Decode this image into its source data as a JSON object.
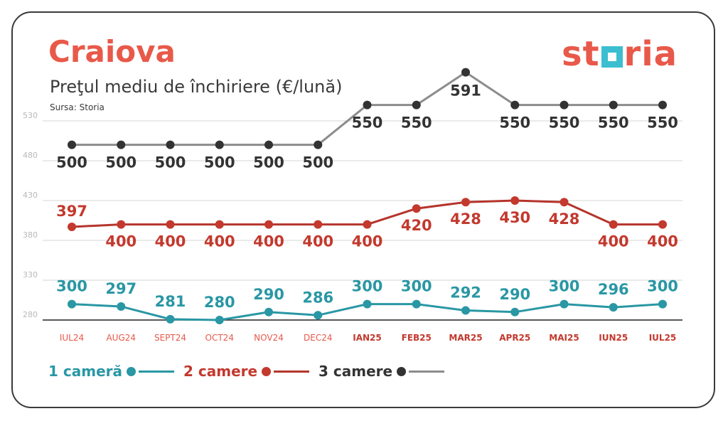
{
  "header": {
    "title": "Craiova",
    "subtitle": "Preţul mediu de închiriere (€/lună)",
    "source": "Sursa: Storia",
    "logo_left": "st",
    "logo_right": "ria"
  },
  "colors": {
    "accent": "#e8594a",
    "teal": "#2a97a4",
    "red": "#c4392e",
    "dark": "#3a3a3a",
    "gray_line": "#8c8c8c",
    "logo_box": "#3bbfd0"
  },
  "chart_data": {
    "type": "line",
    "categories": [
      "IUL24",
      "AUG24",
      "SEPT24",
      "OCT24",
      "NOV24",
      "DEC24",
      "IAN25",
      "FEB25",
      "MAR25",
      "APR25",
      "MAI25",
      "IUN25",
      "IUL25"
    ],
    "category_label_colors": [
      "#e8594a",
      "#e8594a",
      "#e8594a",
      "#e8594a",
      "#e8594a",
      "#e8594a",
      "#c4392e",
      "#c4392e",
      "#c4392e",
      "#c4392e",
      "#c4392e",
      "#c4392e",
      "#c4392e"
    ],
    "category_label_bold": [
      false,
      false,
      false,
      false,
      false,
      false,
      true,
      true,
      true,
      true,
      true,
      true,
      true
    ],
    "yticks": [
      280,
      330,
      380,
      430,
      480,
      530
    ],
    "ylim": [
      280,
      530
    ],
    "grid": true,
    "series": [
      {
        "name": "1 cameră",
        "color": "#2a97a4",
        "label_color": "#2a97a4",
        "values": [
          300,
          297,
          281,
          280,
          290,
          286,
          300,
          300,
          292,
          290,
          300,
          296,
          300
        ]
      },
      {
        "name": "2 camere",
        "color": "#b5342c",
        "label_color": "#c4392e",
        "values": [
          397,
          400,
          400,
          400,
          400,
          400,
          400,
          420,
          428,
          430,
          428,
          400,
          400
        ]
      },
      {
        "name": "3 camere",
        "color": "#8c8c8c",
        "label_color": "#333333",
        "values": [
          500,
          500,
          500,
          500,
          500,
          500,
          550,
          550,
          591,
          550,
          550,
          550,
          550
        ]
      }
    ]
  },
  "legend": {
    "items": [
      {
        "label": "1 cameră",
        "text_color": "#2a97a4",
        "line_color": "#2a97a4",
        "dot_color": "#2a97a4"
      },
      {
        "label": "2 camere",
        "text_color": "#c4392e",
        "line_color": "#b5342c",
        "dot_color": "#c4392e"
      },
      {
        "label": "3 camere",
        "text_color": "#333333",
        "line_color": "#8c8c8c",
        "dot_color": "#333333"
      }
    ]
  }
}
